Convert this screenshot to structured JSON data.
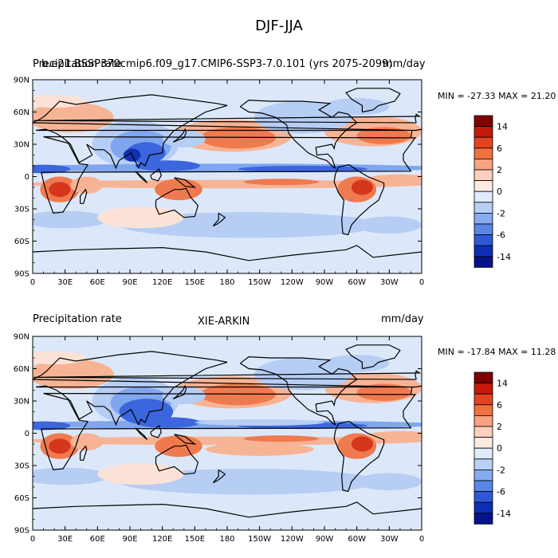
{
  "title": "DJF-JJA",
  "colorbar": {
    "levels": [
      "14",
      "6",
      "2",
      "0",
      "-2",
      "-6",
      "-14"
    ],
    "colors": [
      "#7f0000",
      "#c41a0b",
      "#e5431f",
      "#f0703f",
      "#f7a380",
      "#fbd0bc",
      "#fdebe1",
      "#e0ecfb",
      "#b8d0f5",
      "#86abf0",
      "#5a86e6",
      "#2f58d6",
      "#0f2eb8",
      "#06128a"
    ]
  },
  "x_ticks": [
    "0",
    "30E",
    "60E",
    "90E",
    "120E",
    "150E",
    "180",
    "150W",
    "120W",
    "90W",
    "60W",
    "30W",
    "0"
  ],
  "y_ticks": [
    "90N",
    "60N",
    "30N",
    "0",
    "30S",
    "60S",
    "90S"
  ],
  "panels": [
    {
      "left_label": "Precipitation rate",
      "overlap_label": "b.e21.BSSP370cmip6.f09_g17.CMIP6-SSP3-7.0.101 (yrs 2075-2099)",
      "right_label": "mm/day",
      "minmax": "MIN = -27.33 MAX =  21.20"
    },
    {
      "left_label": "Precipitation rate",
      "center_label": "XIE-ARKIN",
      "right_label": "mm/day",
      "minmax": "MIN = -17.84 MAX =  11.28"
    }
  ]
}
